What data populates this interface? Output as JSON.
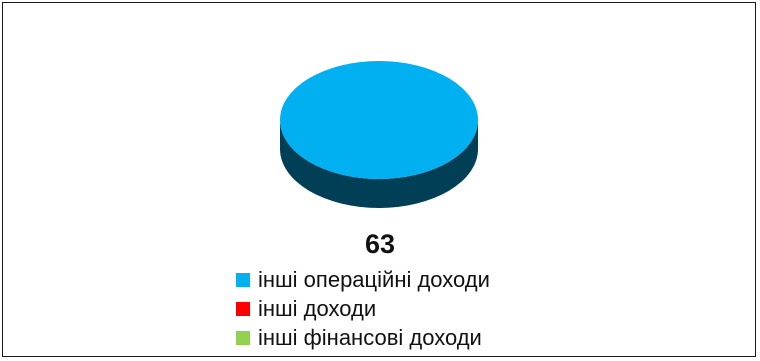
{
  "chart_data": {
    "type": "pie",
    "style": "3d",
    "title": "",
    "categories": [
      "інші операційні доходи",
      "інші доходи",
      "інші фінансові доходи"
    ],
    "values": [
      63,
      0,
      0
    ],
    "colors": [
      "#00b0f0",
      "#ff0000",
      "#92d050"
    ],
    "data_labels": [
      "63"
    ],
    "legend": {
      "position": "bottom",
      "entries": [
        {
          "label": "інші операційні доходи",
          "color": "#00b0f0"
        },
        {
          "label": "інші доходи",
          "color": "#ff0000"
        },
        {
          "label": "інші фінансові доходи",
          "color": "#92d050"
        }
      ]
    }
  }
}
